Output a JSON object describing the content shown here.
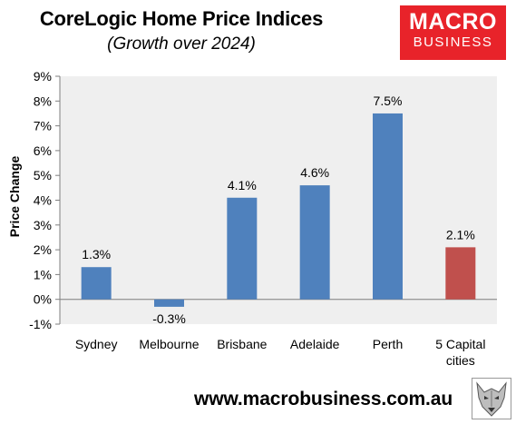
{
  "header": {
    "title": "CoreLogic Home Price Indices",
    "subtitle": "(Growth over 2024)"
  },
  "logo": {
    "line1": "MACRO",
    "line2": "BUSINESS"
  },
  "footer": {
    "url": "www.macrobusiness.com.au"
  },
  "chart_data": {
    "type": "bar",
    "ylabel": "Price Change",
    "ylim": [
      -1,
      9
    ],
    "yticks": [
      "-1%",
      "0%",
      "1%",
      "2%",
      "3%",
      "4%",
      "5%",
      "6%",
      "7%",
      "8%",
      "9%"
    ],
    "grid": false,
    "categories": [
      "Sydney",
      "Melbourne",
      "Brisbane",
      "Adelaide",
      "Perth",
      "5 Capital cities"
    ],
    "category_lines": [
      [
        "Sydney"
      ],
      [
        "Melbourne"
      ],
      [
        "Brisbane"
      ],
      [
        "Adelaide"
      ],
      [
        "Perth"
      ],
      [
        "5 Capital",
        "cities"
      ]
    ],
    "values": [
      1.3,
      -0.3,
      4.1,
      4.6,
      7.5,
      2.1
    ],
    "labels": [
      "1.3%",
      "-0.3%",
      "4.1%",
      "4.6%",
      "7.5%",
      "2.1%"
    ],
    "colors": [
      "#4f81bd",
      "#4f81bd",
      "#4f81bd",
      "#4f81bd",
      "#4f81bd",
      "#c0504d"
    ]
  }
}
